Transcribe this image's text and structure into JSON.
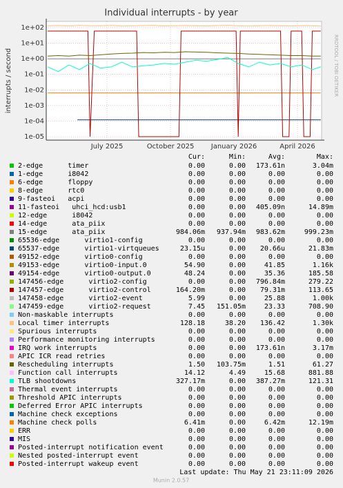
{
  "chart_data": {
    "type": "line",
    "title": "Individual interrupts - by year",
    "y_label": "interrupts / second",
    "log_y": true,
    "grid": true,
    "xlim": [
      0.13,
      13.14
    ],
    "ylim": [
      6e-06,
      250
    ],
    "xticks": [
      {
        "value": 3,
        "label": "July 2025"
      },
      {
        "value": 6,
        "label": "October 2025"
      },
      {
        "value": 9,
        "label": "January 2026"
      },
      {
        "value": 12,
        "label": "April 2026"
      }
    ],
    "yticks": [
      {
        "value": 100,
        "label": "1e+02"
      },
      {
        "value": 10,
        "label": "1e+01"
      },
      {
        "value": 1,
        "label": "1e+00"
      },
      {
        "value": 0.1,
        "label": "1e-01"
      },
      {
        "value": 0.01,
        "label": "1e-02"
      },
      {
        "value": 0.001,
        "label": "1e-03"
      },
      {
        "value": 0.0001,
        "label": "1e-04"
      },
      {
        "value": 1e-05,
        "label": "1e-05"
      }
    ],
    "x": [
      0.2,
      0.7,
      1.2,
      1.7,
      2.2,
      2.7,
      3.2,
      3.7,
      4.2,
      4.7,
      5.2,
      5.7,
      6.2,
      6.7,
      7.2,
      7.7,
      8.2,
      8.7,
      9.2,
      9.7,
      10.2,
      10.7,
      11.2,
      11.7,
      12.2,
      12.7,
      13.1
    ],
    "series": [
      {
        "color": "#808080",
        "values": [
          0.98,
          0.98,
          0.98,
          0.98,
          0.98,
          0.98,
          0.98,
          0.98,
          0.98,
          0.98,
          0.98,
          0.98,
          0.98,
          0.98,
          0.98,
          0.98,
          0.98,
          0.98,
          0.98,
          0.98,
          0.98,
          0.98,
          0.98,
          0.98,
          0.98,
          0.98,
          0.98
        ]
      },
      {
        "color": "#ff8000",
        "values": [
          0.0064,
          0.0064,
          0.0064,
          0.0064,
          0.0064,
          0.0064,
          0.0064,
          0.0064,
          0.0064,
          0.0064,
          0.0064,
          0.0064,
          0.0064,
          0.0064,
          0.0064,
          0.0064,
          0.0064,
          0.0064,
          0.0064,
          0.0064,
          0.0064,
          0.0064,
          0.0064,
          0.0064,
          0.0064,
          0.0064,
          0.0064
        ]
      },
      {
        "color": "#00487d",
        "x": [
          1.6,
          4.0,
          6.5,
          9.0,
          11.5,
          13.1
        ],
        "values": [
          0.00012,
          0.00012,
          0.00012,
          0.00012,
          0.00012,
          0.00012
        ]
      },
      {
        "color": "#ffc080",
        "values": [
          130,
          135,
          128,
          140,
          132,
          130,
          138,
          125,
          130,
          135,
          140,
          128,
          132,
          136,
          130,
          128,
          134,
          138,
          130,
          126,
          132,
          135,
          130,
          128,
          134,
          130,
          128
        ]
      },
      {
        "color": "#b30000",
        "x": [
          0.2,
          2.1,
          2.2,
          2.4,
          4.4,
          4.5,
          6.4,
          6.5,
          9.1,
          9.2,
          9.3,
          11.2,
          11.3,
          11.6,
          11.7,
          12.2,
          12.3,
          12.6,
          12.7,
          13.1
        ],
        "values": [
          60,
          60,
          1e-05,
          60,
          60,
          1e-05,
          1e-05,
          60,
          60,
          1e-05,
          60,
          60,
          1e-05,
          1e-05,
          60,
          60,
          1e-05,
          1e-05,
          60,
          60
        ]
      },
      {
        "color": "#666600",
        "values": [
          1.5,
          1.6,
          1.5,
          1.7,
          1.6,
          1.8,
          2,
          2.2,
          2.3,
          2.5,
          2.4,
          2.6,
          2.5,
          2.8,
          2.7,
          2.6,
          2.4,
          2.3,
          2.2,
          2,
          1.9,
          1.8,
          1.7,
          1.6,
          1.6,
          1.5,
          1.5
        ]
      },
      {
        "color": "#00ffcc",
        "values": [
          0.3,
          0.15,
          0.4,
          0.2,
          0.5,
          0.25,
          0.3,
          0.6,
          0.3,
          0.35,
          0.4,
          0.5,
          0.45,
          0.6,
          0.8,
          0.7,
          0.9,
          1.2,
          0.5,
          0.3,
          0.6,
          0.4,
          0.5,
          0.3,
          0.4,
          0.2,
          0.3
        ]
      }
    ]
  },
  "legend": {
    "columns": [
      "Cur:",
      "Min:",
      "Avg:",
      "Max:"
    ],
    "rows": [
      {
        "label": "2-edge      timer",
        "color": "#00cc00",
        "values": [
          "0.00",
          "0.00",
          "173.61n",
          "3.04m"
        ]
      },
      {
        "label": "1-edge      i8042",
        "color": "#0066b3",
        "values": [
          "0.00",
          "0.00",
          "0.00",
          "0.00"
        ]
      },
      {
        "label": "6-edge      floppy",
        "color": "#ff8000",
        "values": [
          "0.00",
          "0.00",
          "0.00",
          "0.00"
        ]
      },
      {
        "label": "8-edge      rtc0",
        "color": "#ffcc00",
        "values": [
          "0.00",
          "0.00",
          "0.00",
          "0.00"
        ]
      },
      {
        "label": "9-fasteoi   acpi",
        "color": "#330099",
        "values": [
          "0.00",
          "0.00",
          "0.00",
          "0.00"
        ]
      },
      {
        "label": "11-fasteoi   uhci_hcd:usb1",
        "color": "#990099",
        "values": [
          "0.00",
          "0.00",
          "405.09n",
          "14.89m"
        ]
      },
      {
        "label": "12-edge      i8042",
        "color": "#ccff00",
        "values": [
          "0.00",
          "0.00",
          "0.00",
          "0.00"
        ]
      },
      {
        "label": "14-edge      ata_piix",
        "color": "#ff0000",
        "values": [
          "0.00",
          "0.00",
          "0.00",
          "0.00"
        ]
      },
      {
        "label": "15-edge      ata_piix",
        "color": "#808080",
        "values": [
          "984.06m",
          "937.94m",
          "983.62m",
          "999.23m"
        ]
      },
      {
        "label": "65536-edge      virtio1-config",
        "color": "#008f00",
        "values": [
          "0.00",
          "0.00",
          "0.00",
          "0.00"
        ]
      },
      {
        "label": "65537-edge      virtio1-virtqueues",
        "color": "#00487d",
        "values": [
          "23.15u",
          "0.00",
          "20.66u",
          "21.83m"
        ]
      },
      {
        "label": "49152-edge      virtio0-config",
        "color": "#b35a00",
        "values": [
          "0.00",
          "0.00",
          "0.00",
          "0.00"
        ]
      },
      {
        "label": "49153-edge      virtio0-input.0",
        "color": "#b38f00",
        "values": [
          "54.90",
          "0.00",
          "41.85",
          "1.16k"
        ]
      },
      {
        "label": "49154-edge      virtio0-output.0",
        "color": "#6b006b",
        "values": [
          "48.24",
          "0.00",
          "35.36",
          "185.58"
        ]
      },
      {
        "label": "147456-edge      virtio2-config",
        "color": "#8fb300",
        "values": [
          "0.00",
          "0.00",
          "796.84m",
          "279.22"
        ]
      },
      {
        "label": "147457-edge      virtio2-control",
        "color": "#b30000",
        "values": [
          "164.20m",
          "0.00",
          "79.31m",
          "113.65"
        ]
      },
      {
        "label": "147458-edge      virtio2-event",
        "color": "#bebebe",
        "values": [
          "5.99",
          "0.00",
          "25.88",
          "1.00k"
        ]
      },
      {
        "label": "147459-edge      virtio2-request",
        "color": "#80ff80",
        "values": [
          "7.45",
          "151.05m",
          "23.33",
          "708.90"
        ]
      },
      {
        "label": "Non-maskable interrupts",
        "color": "#80c9ff",
        "values": [
          "0.00",
          "0.00",
          "0.00",
          "0.00"
        ]
      },
      {
        "label": "Local timer interrupts",
        "color": "#ffc080",
        "values": [
          "128.18",
          "38.20",
          "136.42",
          "1.30k"
        ]
      },
      {
        "label": "Spurious interrupts",
        "color": "#ffe680",
        "values": [
          "0.00",
          "0.00",
          "0.00",
          "0.00"
        ]
      },
      {
        "label": "Performance monitoring interrupts",
        "color": "#aa80ff",
        "values": [
          "0.00",
          "0.00",
          "0.00",
          "0.00"
        ]
      },
      {
        "label": "IRQ work interrupts",
        "color": "#ee00cc",
        "values": [
          "0.00",
          "0.00",
          "173.61n",
          "3.17m"
        ]
      },
      {
        "label": "APIC ICR read retries",
        "color": "#ff8080",
        "values": [
          "0.00",
          "0.00",
          "0.00",
          "0.00"
        ]
      },
      {
        "label": "Rescheduling interrupts",
        "color": "#666600",
        "values": [
          "1.50",
          "103.75m",
          "1.51",
          "61.27"
        ]
      },
      {
        "label": "Function call interrupts",
        "color": "#ffbfff",
        "values": [
          "14.12",
          "4.49",
          "15.68",
          "881.88"
        ]
      },
      {
        "label": "TLB shootdowns",
        "color": "#00ffcc",
        "values": [
          "327.17m",
          "0.00",
          "387.27m",
          "121.31"
        ]
      },
      {
        "label": "Thermal event interrupts",
        "color": "#cc6699",
        "values": [
          "0.00",
          "0.00",
          "0.00",
          "0.00"
        ]
      },
      {
        "label": "Threshold APIC interrupts",
        "color": "#999900",
        "values": [
          "0.00",
          "0.00",
          "0.00",
          "0.00"
        ]
      },
      {
        "label": "Deferred Error APIC interrupts",
        "color": "#00cc00",
        "values": [
          "0.00",
          "0.00",
          "0.00",
          "0.00"
        ]
      },
      {
        "label": "Machine check exceptions",
        "color": "#0066b3",
        "values": [
          "0.00",
          "0.00",
          "0.00",
          "0.00"
        ]
      },
      {
        "label": "Machine check polls",
        "color": "#ff8000",
        "values": [
          "6.41m",
          "0.00",
          "6.42m",
          "12.19m"
        ]
      },
      {
        "label": "ERR",
        "color": "#ffcc00",
        "values": [
          "0.00",
          "0.00",
          "0.00",
          "0.00"
        ]
      },
      {
        "label": "MIS",
        "color": "#330099",
        "values": [
          "0.00",
          "0.00",
          "0.00",
          "0.00"
        ]
      },
      {
        "label": "Posted-interrupt notification event",
        "color": "#990099",
        "values": [
          "0.00",
          "0.00",
          "0.00",
          "0.00"
        ]
      },
      {
        "label": "Nested posted-interrupt event",
        "color": "#ccff00",
        "values": [
          "0.00",
          "0.00",
          "0.00",
          "0.00"
        ]
      },
      {
        "label": "Posted-interrupt wakeup event",
        "color": "#ff0000",
        "values": [
          "0.00",
          "0.00",
          "0.00",
          "0.00"
        ]
      }
    ]
  },
  "footer": {
    "last_update": "Last update: Thu May 21 23:11:09 2026",
    "version": "Munin 2.0.57",
    "watermark": "RRDTOOL / TOBI OETIKER"
  }
}
